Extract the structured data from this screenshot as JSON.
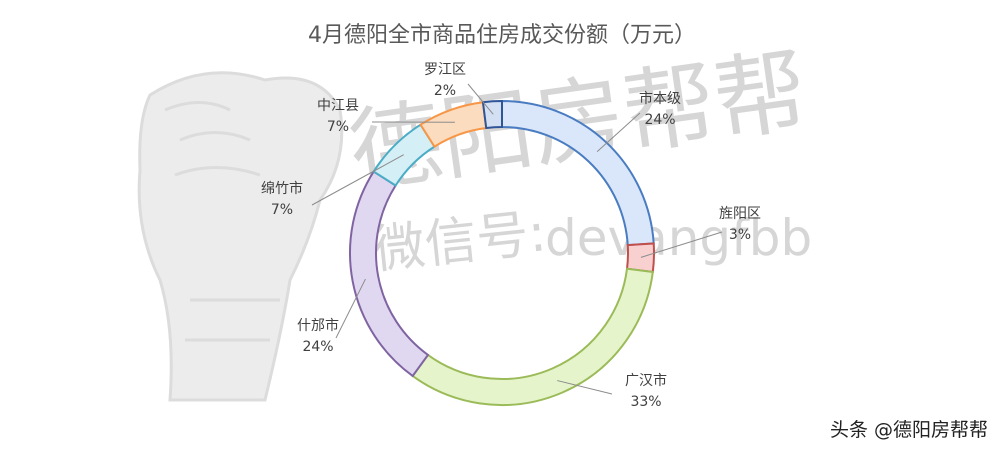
{
  "watermark": {
    "brand": "德阳房帮帮",
    "account": "devangfbb",
    "wechat_label": "微信号:"
  },
  "credit": "头条 @德阳房帮帮",
  "chart_data": {
    "type": "pie",
    "donut": true,
    "title": "4月德阳全市商品住房成交份额（万元）",
    "legend": "none",
    "categories": [
      "市本级",
      "旌阳区",
      "广汉市",
      "什邡市",
      "绵竹市",
      "中江县",
      "罗江区"
    ],
    "values": [
      24,
      3,
      33,
      24,
      7,
      7,
      2
    ],
    "value_labels": [
      "24%",
      "3%",
      "33%",
      "24%",
      "7%",
      "7%",
      "2%"
    ],
    "colors": {
      "fills": [
        "#dae6fa",
        "#f8d0d0",
        "#e6f4cc",
        "#e0d8f1",
        "#d4eff6",
        "#fbdcbe",
        "#d3e0f3"
      ],
      "strokes": [
        "#4a7cc1",
        "#c0504d",
        "#9bbb59",
        "#8064a2",
        "#4bacc6",
        "#f79646",
        "#2f5597"
      ]
    }
  }
}
